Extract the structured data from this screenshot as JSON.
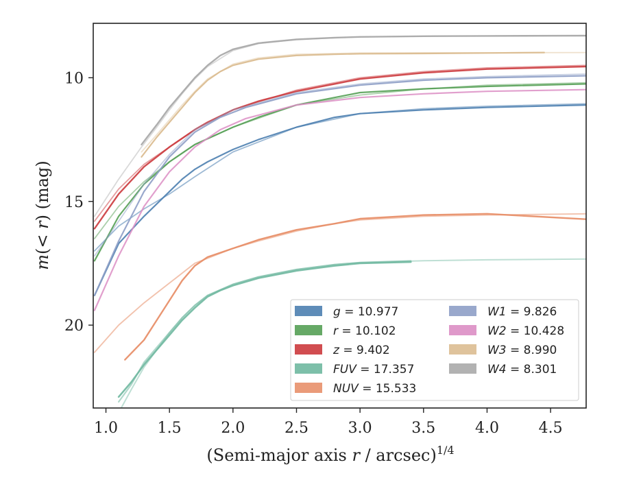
{
  "chart_data": {
    "type": "line",
    "title": "",
    "xlabel": "(Semi-major axis r / arcsec)",
    "xlabel_italic": "r",
    "xlabel_prefix": "(Semi-major axis ",
    "xlabel_suffix": " / arcsec)",
    "xlabel_sup": "1/4",
    "ylabel_prefix": "m(",
    "ylabel_mid": " < r",
    "ylabel_suffix": ") (mag)",
    "xlim": [
      0.9,
      4.78
    ],
    "ylim": [
      23.35,
      7.8
    ],
    "y_inverted": true,
    "xticks": [
      1.0,
      1.5,
      2.0,
      2.5,
      3.0,
      3.5,
      4.0,
      4.5
    ],
    "xtick_labels": [
      "1.0",
      "1.5",
      "2.0",
      "2.5",
      "3.0",
      "3.5",
      "4.0",
      "4.5"
    ],
    "yticks": [
      10,
      15,
      20
    ],
    "ytick_labels": [
      "10",
      "15",
      "20"
    ],
    "grid": false,
    "legend_placement": "lower-right",
    "legend": [
      {
        "var": "g",
        "value": "10.977",
        "color": "#4c7fb0"
      },
      {
        "var": "r",
        "value": "10.102",
        "color": "#55a055"
      },
      {
        "var": "z",
        "value": "9.402",
        "color": "#cc3a3d"
      },
      {
        "var": "FUV",
        "value": "17.357",
        "color": "#6fb8a0"
      },
      {
        "var": "NUV",
        "value": "15.533",
        "color": "#e8906a"
      },
      {
        "var": "W1",
        "value": "9.826",
        "color": "#8e9fc6"
      },
      {
        "var": "W2",
        "value": "10.428",
        "color": "#dc8ec4"
      },
      {
        "var": "W3",
        "value": "8.990",
        "color": "#dbbd91"
      },
      {
        "var": "W4",
        "value": "8.301",
        "color": "#aaaaaa"
      }
    ],
    "series": [
      {
        "name": "g",
        "color": "#4c7fb0",
        "opacity": 0.9,
        "width": 2.2,
        "x": [
          0.91,
          1.1,
          1.3,
          1.5,
          1.6,
          1.7,
          1.8,
          2.0,
          2.2,
          2.5,
          2.8,
          3.0,
          3.5,
          4.0,
          4.78
        ],
        "y": [
          18.8,
          16.7,
          15.6,
          14.6,
          14.1,
          13.7,
          13.4,
          12.9,
          12.5,
          12.0,
          11.6,
          11.45,
          11.3,
          11.2,
          11.1
        ]
      },
      {
        "name": "g",
        "color": "#4c7fb0",
        "opacity": 0.55,
        "width": 1.8,
        "x": [
          0.91,
          1.1,
          1.3,
          1.5,
          1.7,
          2.0,
          2.5,
          3.0,
          3.5,
          4.0,
          4.78
        ],
        "y": [
          17.0,
          16.0,
          15.3,
          14.7,
          14.0,
          13.0,
          12.0,
          11.45,
          11.25,
          11.15,
          11.05
        ]
      },
      {
        "name": "r",
        "color": "#55a055",
        "opacity": 0.9,
        "width": 2.2,
        "x": [
          0.91,
          1.1,
          1.3,
          1.5,
          1.7,
          2.0,
          2.2,
          2.5,
          2.8,
          3.0,
          3.5,
          4.0,
          4.78
        ],
        "y": [
          17.4,
          15.6,
          14.3,
          13.4,
          12.7,
          12.0,
          11.6,
          11.1,
          10.8,
          10.6,
          10.45,
          10.35,
          10.25
        ]
      },
      {
        "name": "r",
        "color": "#55a055",
        "opacity": 0.5,
        "width": 1.8,
        "x": [
          0.91,
          1.1,
          1.3,
          1.5,
          1.7,
          2.0,
          2.5,
          3.0,
          3.5,
          4.0,
          4.78
        ],
        "y": [
          16.5,
          15.2,
          14.2,
          13.4,
          12.7,
          12.0,
          11.1,
          10.7,
          10.45,
          10.3,
          10.2
        ]
      },
      {
        "name": "z",
        "color": "#cc3a3d",
        "opacity": 0.9,
        "width": 2.4,
        "x": [
          0.91,
          1.1,
          1.3,
          1.5,
          1.7,
          1.8,
          2.0,
          2.2,
          2.5,
          2.8,
          3.0,
          3.5,
          4.0,
          4.78
        ],
        "y": [
          16.1,
          14.7,
          13.6,
          12.8,
          12.1,
          11.8,
          11.3,
          10.95,
          10.55,
          10.25,
          10.05,
          9.8,
          9.65,
          9.55
        ]
      },
      {
        "name": "z",
        "color": "#cc3a3d",
        "opacity": 0.5,
        "width": 1.8,
        "x": [
          0.91,
          1.1,
          1.3,
          1.5,
          1.7,
          2.0,
          2.5,
          3.0,
          3.5,
          4.0,
          4.78
        ],
        "y": [
          15.8,
          14.5,
          13.5,
          12.8,
          12.1,
          11.3,
          10.5,
          10.0,
          9.75,
          9.6,
          9.5
        ]
      },
      {
        "name": "FUV",
        "color": "#6fb8a0",
        "opacity": 0.9,
        "width": 2.6,
        "x": [
          1.1,
          1.2,
          1.3,
          1.4,
          1.5,
          1.6,
          1.7,
          1.8,
          1.9,
          2.0,
          2.2,
          2.5,
          2.8,
          3.0,
          3.4
        ],
        "y": [
          22.9,
          22.3,
          21.6,
          21.0,
          20.4,
          19.8,
          19.3,
          18.85,
          18.6,
          18.4,
          18.1,
          17.8,
          17.6,
          17.5,
          17.45
        ]
      },
      {
        "name": "FUV",
        "color": "#6fb8a0",
        "opacity": 0.55,
        "width": 2.2,
        "x": [
          1.1,
          1.2,
          1.3,
          1.4,
          1.5,
          1.6,
          1.7,
          1.8,
          2.0,
          2.2,
          2.5,
          2.8,
          3.0,
          3.4
        ],
        "y": [
          23.1,
          22.4,
          21.5,
          20.9,
          20.3,
          19.7,
          19.2,
          18.8,
          18.35,
          18.05,
          17.75,
          17.55,
          17.47,
          17.4
        ]
      },
      {
        "name": "FUV",
        "color": "#6fb8a0",
        "opacity": 0.45,
        "width": 2.0,
        "x": [
          1.12,
          1.2,
          1.3,
          1.4,
          1.5,
          1.6,
          1.7,
          1.8,
          2.0,
          2.2,
          2.5,
          2.8,
          3.0,
          3.5,
          4.0,
          4.78
        ],
        "y": [
          23.35,
          22.6,
          21.7,
          21.0,
          20.3,
          19.7,
          19.2,
          18.8,
          18.35,
          18.05,
          17.75,
          17.55,
          17.47,
          17.4,
          17.36,
          17.33
        ]
      },
      {
        "name": "NUV",
        "color": "#e8906a",
        "opacity": 0.95,
        "width": 2.4,
        "x": [
          1.15,
          1.3,
          1.4,
          1.5,
          1.6,
          1.7,
          1.8,
          2.0,
          2.2,
          2.5,
          2.8,
          3.0,
          3.5,
          4.0,
          4.78
        ],
        "y": [
          21.4,
          20.6,
          19.8,
          19.0,
          18.2,
          17.6,
          17.25,
          16.9,
          16.55,
          16.15,
          15.9,
          15.7,
          15.55,
          15.5,
          15.72
        ]
      },
      {
        "name": "NUV",
        "color": "#e8906a",
        "opacity": 0.55,
        "width": 1.9,
        "x": [
          0.91,
          1.1,
          1.3,
          1.5,
          1.7,
          2.0,
          2.2,
          2.5,
          2.8,
          3.0,
          3.5,
          4.0,
          4.78
        ],
        "y": [
          21.1,
          20.0,
          19.1,
          18.3,
          17.5,
          16.9,
          16.6,
          16.2,
          15.9,
          15.75,
          15.6,
          15.55,
          15.5
        ]
      },
      {
        "name": "W1",
        "color": "#8e9fc6",
        "opacity": 0.9,
        "width": 2.2,
        "x": [
          0.91,
          1.1,
          1.3,
          1.5,
          1.7,
          1.9,
          2.1,
          2.5,
          3.0,
          3.5,
          4.0,
          4.78
        ],
        "y": [
          18.8,
          16.6,
          14.6,
          13.2,
          12.2,
          11.6,
          11.2,
          10.65,
          10.3,
          10.1,
          10.0,
          9.92
        ]
      },
      {
        "name": "W1",
        "color": "#8e9fc6",
        "opacity": 0.5,
        "width": 1.8,
        "x": [
          0.91,
          1.1,
          1.3,
          1.5,
          1.7,
          2.0,
          2.5,
          3.0,
          3.5,
          4.0,
          4.78
        ],
        "y": [
          17.2,
          15.8,
          14.3,
          13.1,
          12.1,
          11.3,
          10.6,
          10.25,
          10.05,
          9.95,
          9.85
        ]
      },
      {
        "name": "W2",
        "color": "#dc8ec4",
        "opacity": 0.85,
        "width": 2.2,
        "x": [
          0.91,
          1.1,
          1.3,
          1.5,
          1.7,
          1.9,
          2.1,
          2.5,
          3.0,
          3.5,
          4.0,
          4.78
        ],
        "y": [
          19.4,
          17.2,
          15.2,
          13.8,
          12.8,
          12.1,
          11.65,
          11.1,
          10.8,
          10.65,
          10.55,
          10.48
        ]
      },
      {
        "name": "W3",
        "color": "#dbbd91",
        "opacity": 0.95,
        "width": 2.2,
        "x": [
          1.28,
          1.4,
          1.5,
          1.6,
          1.7,
          1.8,
          1.9,
          2.0,
          2.2,
          2.5,
          2.8,
          3.0,
          3.5,
          4.0,
          4.45
        ],
        "y": [
          13.2,
          12.4,
          11.8,
          11.2,
          10.6,
          10.1,
          9.75,
          9.5,
          9.25,
          9.1,
          9.05,
          9.03,
          9.02,
          9.0,
          8.98
        ]
      },
      {
        "name": "W3",
        "color": "#dbbd91",
        "opacity": 0.45,
        "width": 1.8,
        "x": [
          1.28,
          1.4,
          1.5,
          1.6,
          1.7,
          1.8,
          2.0,
          2.2,
          2.5,
          3.0,
          3.5,
          4.0,
          4.78
        ],
        "y": [
          13.0,
          12.3,
          11.7,
          11.1,
          10.55,
          10.05,
          9.45,
          9.2,
          9.05,
          9.0,
          8.99,
          8.99,
          8.98
        ]
      },
      {
        "name": "W4",
        "color": "#aaaaaa",
        "opacity": 0.95,
        "width": 2.4,
        "x": [
          1.28,
          1.4,
          1.5,
          1.6,
          1.7,
          1.8,
          1.9,
          2.0,
          2.2,
          2.5,
          2.8,
          3.0,
          3.5,
          4.0,
          4.78
        ],
        "y": [
          12.7,
          11.9,
          11.2,
          10.6,
          10.0,
          9.5,
          9.1,
          8.85,
          8.6,
          8.45,
          8.38,
          8.35,
          8.32,
          8.31,
          8.3
        ]
      },
      {
        "name": "W4",
        "color": "#aaaaaa",
        "opacity": 0.45,
        "width": 1.8,
        "x": [
          0.91,
          1.1,
          1.28,
          1.4,
          1.5,
          1.6,
          1.7,
          1.8,
          2.0,
          2.2,
          2.5,
          3.0,
          3.5,
          4.0,
          4.78
        ],
        "y": [
          15.6,
          14.1,
          12.8,
          12.0,
          11.3,
          10.65,
          10.05,
          9.55,
          8.9,
          8.62,
          8.45,
          8.35,
          8.32,
          8.31,
          8.3
        ]
      }
    ]
  }
}
